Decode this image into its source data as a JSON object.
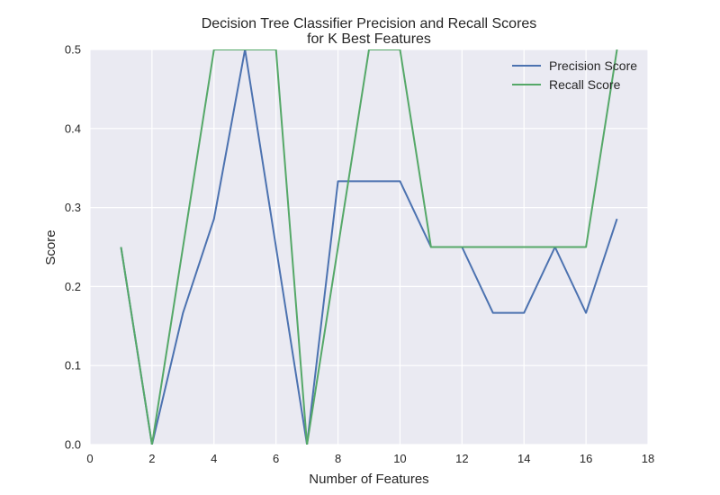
{
  "chart_data": {
    "type": "line",
    "title": [
      "Decision Tree Classifier Precision and Recall Scores",
      "for K Best Features"
    ],
    "xlabel": "Number of Features",
    "ylabel": "Score",
    "xlim": [
      0,
      18
    ],
    "ylim": [
      0,
      0.5
    ],
    "xticks": [
      0,
      2,
      4,
      6,
      8,
      10,
      12,
      14,
      16,
      18
    ],
    "yticks": [
      0.0,
      0.1,
      0.2,
      0.3,
      0.4,
      0.5
    ],
    "xtick_labels": [
      "0",
      "2",
      "4",
      "6",
      "8",
      "10",
      "12",
      "14",
      "16",
      "18"
    ],
    "ytick_labels": [
      "0.0",
      "0.1",
      "0.2",
      "0.3",
      "0.4",
      "0.5"
    ],
    "grid": true,
    "legend_position": "top-right",
    "x": [
      1,
      2,
      3,
      4,
      5,
      6,
      7,
      8,
      9,
      10,
      11,
      12,
      13,
      14,
      15,
      16,
      17
    ],
    "series": [
      {
        "name": "Precision Score",
        "color": "#4c72b0",
        "values": [
          0.25,
          0.0,
          0.1667,
          0.2857,
          0.5,
          0.25,
          0.0,
          0.3333,
          0.3333,
          0.3333,
          0.25,
          0.25,
          0.1667,
          0.1667,
          0.25,
          0.1667,
          0.2857
        ]
      },
      {
        "name": "Recall Score",
        "color": "#55a868",
        "values": [
          0.25,
          0.0,
          0.25,
          0.5,
          0.5,
          0.5,
          0.0,
          0.25,
          0.5,
          0.5,
          0.25,
          0.25,
          0.25,
          0.25,
          0.25,
          0.25,
          0.5
        ]
      }
    ]
  }
}
